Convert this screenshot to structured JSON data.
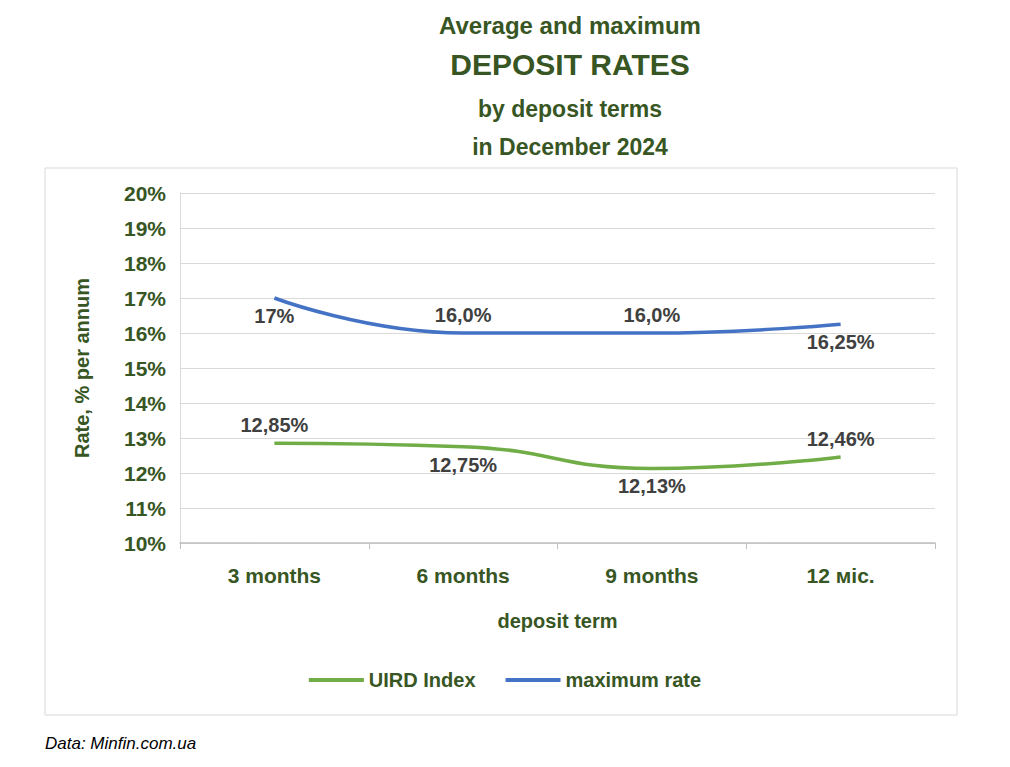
{
  "chart_data": {
    "type": "line",
    "title": [
      "Average and maximum",
      "DEPOSIT RATES",
      "by deposit terms",
      "in December 2024"
    ],
    "x_label": "deposit term",
    "y_label": "Rate, % per annum",
    "source": "Data: Minfin.com.ua",
    "categories": [
      "3 months",
      "6 months",
      "9 months",
      "12 міс."
    ],
    "series": [
      {
        "name": "UIRD Index",
        "color": "#70ad47",
        "values": [
          12.85,
          12.75,
          12.13,
          12.46
        ],
        "value_labels": [
          "12,85%",
          "12,75%",
          "12,13%",
          "12,46%"
        ]
      },
      {
        "name": "maximum rate",
        "color": "#4472c4",
        "values": [
          17,
          16,
          16,
          16.25
        ],
        "value_labels": [
          "17%",
          "16,0%",
          "16,0%",
          "16,25%"
        ]
      }
    ],
    "ylim": [
      10,
      20
    ],
    "yticks": [
      {
        "value": 10,
        "label": "10%"
      },
      {
        "value": 11,
        "label": "11%"
      },
      {
        "value": 12,
        "label": "12%"
      },
      {
        "value": 13,
        "label": "13%"
      },
      {
        "value": 14,
        "label": "14%"
      },
      {
        "value": 15,
        "label": "15%"
      },
      {
        "value": 16,
        "label": "16%"
      },
      {
        "value": 17,
        "label": "17%"
      },
      {
        "value": 18,
        "label": "18%"
      },
      {
        "value": 19,
        "label": "19%"
      },
      {
        "value": 20,
        "label": "20%"
      }
    ],
    "grid": true,
    "legend": "bottom",
    "data_labels": true
  }
}
